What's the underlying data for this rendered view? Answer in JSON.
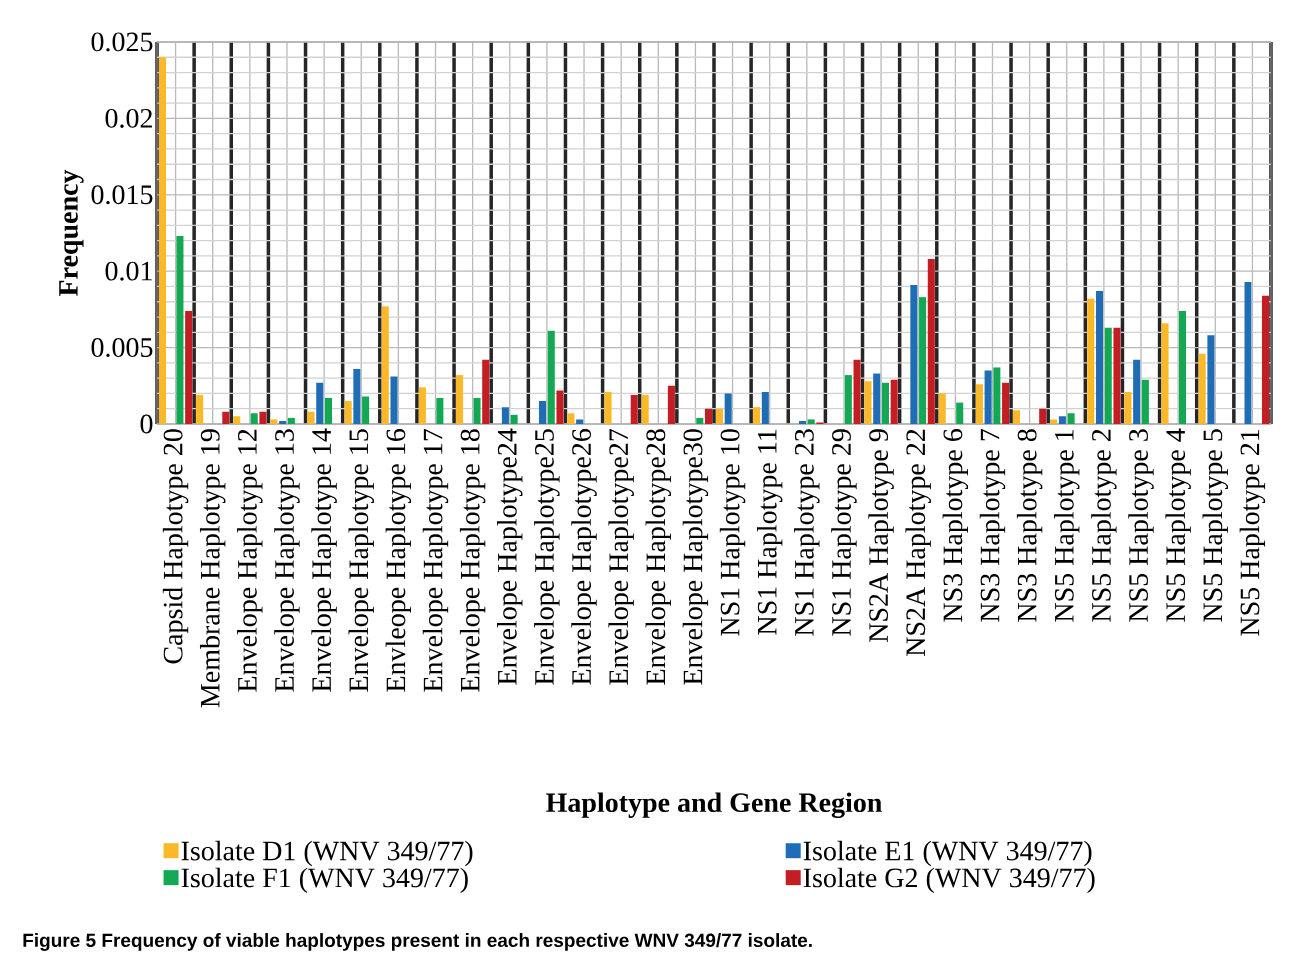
{
  "chart_data": {
    "type": "bar",
    "xlabel": "Haplotype and Gene Region",
    "ylabel": "Frequency",
    "annotations": [
      "Figure 5 Frequency of viable haplotypes present in each respective WNV 349/77 isolate."
    ],
    "categories": [
      "Capsid Haplotype 20",
      "Membrane Haplotype 19",
      "Envelope Haplotype 12",
      "Envelope Haplotype 13",
      "Envelope Haplotype 14",
      "Envelope Haplotype 15",
      "Envleope Haplotype 16",
      "Envelope Haplotype 17",
      "Envelope Haplotype 18",
      "Envelope Haplotype24",
      "Envelope Haplotype25",
      "Envelope Haplotype26",
      "Envelope Haplotype27",
      "Envelope Haplotype28",
      "Envelope Haplotype30",
      "NS1 Haplotype 10",
      "NS1 Haplotype 11",
      "NS1 Haplotype 23",
      "NS1 Haplotype 29",
      "NS2A Haplotype 9",
      "NS2A Haplotype 22",
      "NS3 Haplotype 6",
      "NS3 Haplotype 7",
      "NS3 Haplotype 8",
      "NS5 Haplotype 1",
      "NS5 Haplotype 2",
      "NS5 Haplotype 3",
      "NS5 Haplotype 4",
      "NS5 Haplotype 5",
      "NS5 Haplotype 21"
    ],
    "series": [
      {
        "name": "Isolate D1 (WNV 349/77)",
        "color": "#fbb829",
        "values": [
          0.024,
          0.0019,
          0.0005,
          0.0003,
          0.0008,
          0.0015,
          0.0077,
          0.0024,
          0.0032,
          null,
          null,
          0.0007,
          0.0021,
          0.0019,
          null,
          0.001,
          0.0011,
          null,
          null,
          0.0028,
          null,
          0.002,
          0.0026,
          0.0009,
          0.0003,
          0.0082,
          0.0021,
          0.0066,
          0.0046,
          null
        ]
      },
      {
        "name": "Isolate E1 (WNV 349/77)",
        "color": "#1f6eb5",
        "values": [
          null,
          null,
          null,
          0.0002,
          0.0027,
          0.0036,
          0.0031,
          null,
          null,
          0.0011,
          0.0015,
          0.0003,
          null,
          null,
          null,
          0.002,
          0.0021,
          0.0002,
          null,
          0.0033,
          0.0091,
          null,
          0.0035,
          null,
          0.0005,
          0.0087,
          0.0042,
          null,
          0.0058,
          0.0093
        ]
      },
      {
        "name": "Isolate F1 (WNV 349/77)",
        "color": "#14a754",
        "values": [
          0.0123,
          null,
          0.0007,
          0.0004,
          0.0017,
          0.0018,
          null,
          0.0017,
          0.0017,
          0.0006,
          0.0061,
          null,
          null,
          null,
          0.0004,
          null,
          null,
          0.0003,
          0.0032,
          0.0027,
          0.0083,
          0.0014,
          0.0037,
          null,
          0.0007,
          0.0063,
          0.0029,
          0.0074,
          null,
          null
        ]
      },
      {
        "name": "Isolate G2 (WNV 349/77)",
        "color": "#c41e24",
        "values": [
          0.0074,
          0.0008,
          0.0008,
          null,
          null,
          null,
          null,
          null,
          0.0042,
          null,
          0.0022,
          null,
          0.0019,
          0.0025,
          0.001,
          null,
          null,
          0.0001,
          0.0042,
          0.0029,
          0.0108,
          null,
          0.0027,
          0.001,
          null,
          0.0063,
          null,
          null,
          null,
          0.0084
        ]
      }
    ],
    "ylim": [
      0,
      0.025
    ],
    "yticks": [
      0,
      0.005,
      0.01,
      0.015,
      0.02,
      0.025
    ],
    "grid": true,
    "legend": "bottom"
  }
}
